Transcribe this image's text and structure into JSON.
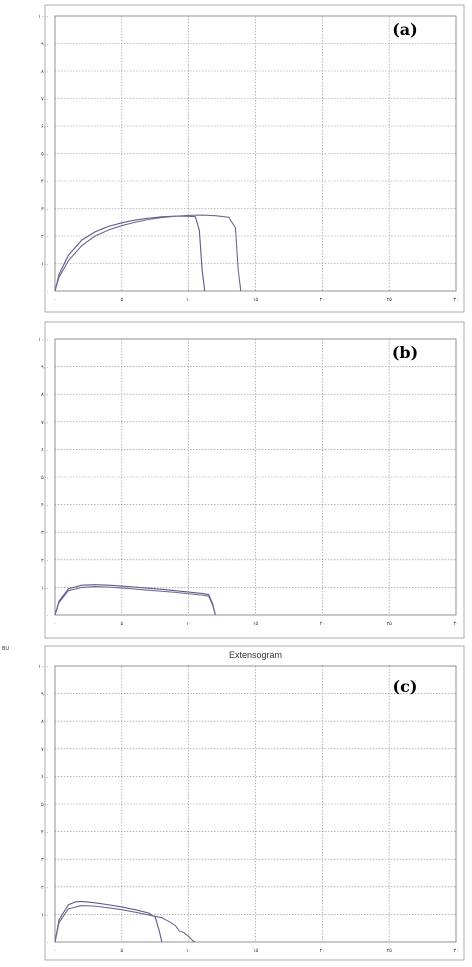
{
  "chart_data": [
    {
      "type": "line",
      "panel_label": "(a)",
      "title": "",
      "xlabel": "",
      "ylabel": "",
      "xlim": [
        0,
        30
      ],
      "ylim": [
        0,
        1000
      ],
      "x_tick_labels": [
        "۰",
        "۵",
        "۱۰",
        "۱۵",
        "۲۰",
        "۲۵",
        "۳۰"
      ],
      "y_tick_labels": [
        "۰",
        "۱۰۰",
        "۲۰۰",
        "۳۰۰",
        "۴۰۰",
        "۵۰۰",
        "۶۰۰",
        "۷۰۰",
        "۸۰۰",
        "۹۰۰",
        "۱۰۰۰"
      ],
      "grid": true,
      "series": [
        {
          "x": [
            0,
            0.3,
            1,
            2,
            3,
            4,
            5,
            6,
            7,
            8,
            9,
            10,
            10.5,
            10.8,
            11,
            11.2
          ],
          "y": [
            0,
            60,
            130,
            185,
            215,
            235,
            248,
            258,
            265,
            270,
            272,
            272,
            270,
            220,
            80,
            0
          ]
        },
        {
          "x": [
            0,
            0.3,
            1,
            2,
            3,
            4,
            5,
            6,
            7,
            8,
            9,
            10,
            11,
            12,
            13,
            13.5,
            13.7,
            13.9
          ],
          "y": [
            0,
            50,
            110,
            165,
            200,
            222,
            238,
            250,
            260,
            267,
            272,
            275,
            276,
            274,
            268,
            230,
            80,
            0
          ]
        }
      ]
    },
    {
      "type": "line",
      "panel_label": "(b)",
      "title": "",
      "xlabel": "",
      "ylabel": "",
      "xlim": [
        0,
        30
      ],
      "ylim": [
        0,
        1000
      ],
      "x_tick_labels": [
        "۰",
        "۵",
        "۱۰",
        "۱۵",
        "۲۰",
        "۲۵",
        "۳۰"
      ],
      "y_tick_labels": [
        "۰",
        "۱۰۰",
        "۲۰۰",
        "۳۰۰",
        "۴۰۰",
        "۵۰۰",
        "۶۰۰",
        "۷۰۰",
        "۸۰۰",
        "۹۰۰",
        "۱۰۰۰"
      ],
      "grid": true,
      "series": [
        {
          "x": [
            0,
            0.3,
            1,
            2,
            3,
            4,
            5,
            6,
            7,
            8,
            9,
            10,
            11,
            11.5,
            11.8,
            12
          ],
          "y": [
            0,
            50,
            95,
            108,
            110,
            108,
            105,
            101,
            97,
            93,
            88,
            83,
            78,
            74,
            40,
            0
          ]
        },
        {
          "x": [
            0,
            0.3,
            1,
            2,
            3,
            4,
            5,
            6,
            7,
            8,
            9,
            10,
            11,
            11.5,
            11.8,
            12
          ],
          "y": [
            0,
            45,
            88,
            100,
            103,
            101,
            98,
            94,
            90,
            86,
            82,
            77,
            72,
            68,
            35,
            0
          ]
        }
      ]
    },
    {
      "type": "line",
      "panel_label": "(c)",
      "title": "Extensogram",
      "corner_label": "BU",
      "xlabel": "",
      "ylabel": "",
      "xlim": [
        0,
        30
      ],
      "ylim": [
        0,
        1000
      ],
      "x_tick_labels": [
        "۰",
        "۵",
        "۱۰",
        "۱۵",
        "۲۰",
        "۲۵",
        "۳۰"
      ],
      "y_tick_labels": [
        "۰",
        "۱۰۰",
        "۲۰۰",
        "۳۰۰",
        "۴۰۰",
        "۵۰۰",
        "۶۰۰",
        "۷۰۰",
        "۸۰۰",
        "۹۰۰",
        "۱۰۰۰"
      ],
      "grid": true,
      "series": [
        {
          "x": [
            0,
            0.3,
            1,
            1.5,
            2,
            3,
            4,
            5,
            6,
            7,
            7.5,
            7.8,
            8
          ],
          "y": [
            0,
            80,
            135,
            145,
            147,
            142,
            135,
            127,
            117,
            105,
            90,
            40,
            0
          ]
        },
        {
          "x": [
            0,
            0.3,
            1,
            2,
            3,
            4,
            5,
            6,
            7,
            8,
            8.5,
            9,
            9.3,
            9.6,
            10,
            10.3,
            10.5
          ],
          "y": [
            0,
            70,
            120,
            132,
            130,
            124,
            117,
            108,
            98,
            88,
            75,
            60,
            40,
            35,
            20,
            5,
            0
          ]
        }
      ]
    }
  ]
}
